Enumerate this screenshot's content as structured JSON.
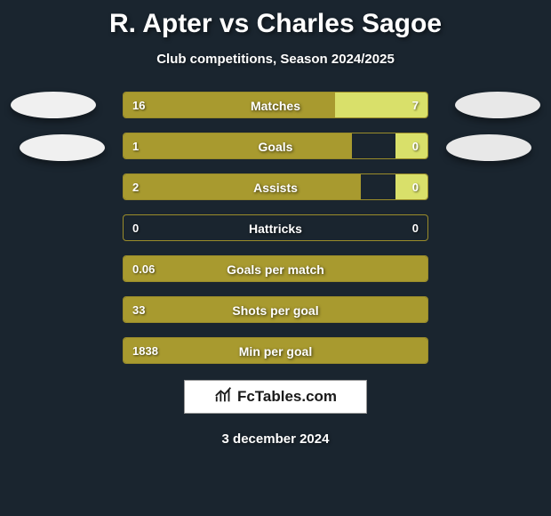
{
  "title": "R. Apter vs Charles Sagoe",
  "subtitle": "Club competitions, Season 2024/2025",
  "date": "3 december 2024",
  "brand": "FcTables.com",
  "colors": {
    "background": "#1a252f",
    "bar_left": "#a89a2f",
    "bar_right": "#d9e06a",
    "bar_border": "#9a8c2a",
    "ellipse_left": "#f0f0f0",
    "ellipse_right": "#e8e8e8",
    "text": "#ffffff"
  },
  "rows": [
    {
      "label": "Matches",
      "left": "16",
      "right": "7",
      "left_pct": 69.6,
      "right_pct": 30.4
    },
    {
      "label": "Goals",
      "left": "1",
      "right": "0",
      "left_pct": 75.0,
      "right_pct": 10.5
    },
    {
      "label": "Assists",
      "left": "2",
      "right": "0",
      "left_pct": 78.0,
      "right_pct": 10.5
    },
    {
      "label": "Hattricks",
      "left": "0",
      "right": "0",
      "left_pct": 0,
      "right_pct": 0
    },
    {
      "label": "Goals per match",
      "left": "0.06",
      "right": "",
      "left_pct": 100,
      "right_pct": 0
    },
    {
      "label": "Shots per goal",
      "left": "33",
      "right": "",
      "left_pct": 100,
      "right_pct": 0
    },
    {
      "label": "Min per goal",
      "left": "1838",
      "right": "",
      "left_pct": 100,
      "right_pct": 0
    }
  ]
}
